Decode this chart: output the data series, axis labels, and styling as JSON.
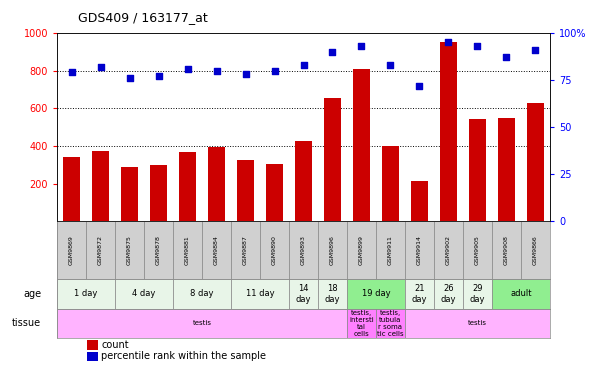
{
  "title": "GDS409 / 163177_at",
  "samples": [
    "GSM9869",
    "GSM9872",
    "GSM9875",
    "GSM9878",
    "GSM9881",
    "GSM9884",
    "GSM9887",
    "GSM9890",
    "GSM9893",
    "GSM9896",
    "GSM9899",
    "GSM9911",
    "GSM9914",
    "GSM9902",
    "GSM9905",
    "GSM9908",
    "GSM9866"
  ],
  "counts": [
    340,
    375,
    290,
    300,
    365,
    395,
    325,
    305,
    425,
    655,
    810,
    400,
    215,
    950,
    545,
    550,
    630
  ],
  "percentiles": [
    79,
    82,
    76,
    77,
    81,
    80,
    78,
    80,
    83,
    90,
    93,
    83,
    72,
    95,
    93,
    87,
    91
  ],
  "bar_color": "#cc0000",
  "dot_color": "#0000cc",
  "ylim_left": [
    0,
    1000
  ],
  "ylim_right": [
    0,
    100
  ],
  "yticks_left": [
    200,
    400,
    600,
    800,
    1000
  ],
  "yticks_right": [
    0,
    25,
    50,
    75,
    100
  ],
  "yticklabels_right": [
    "0",
    "25",
    "50",
    "75",
    "100%"
  ],
  "dotted_line_values": [
    400,
    600,
    800
  ],
  "age_groups": [
    {
      "label": "1 day",
      "start": 0,
      "end": 2,
      "color": "#e8f5e8"
    },
    {
      "label": "4 day",
      "start": 2,
      "end": 4,
      "color": "#e8f5e8"
    },
    {
      "label": "8 day",
      "start": 4,
      "end": 6,
      "color": "#e8f5e8"
    },
    {
      "label": "11 day",
      "start": 6,
      "end": 8,
      "color": "#e8f5e8"
    },
    {
      "label": "14\nday",
      "start": 8,
      "end": 9,
      "color": "#e8f5e8"
    },
    {
      "label": "18\nday",
      "start": 9,
      "end": 10,
      "color": "#e8f5e8"
    },
    {
      "label": "19 day",
      "start": 10,
      "end": 12,
      "color": "#90ee90"
    },
    {
      "label": "21\nday",
      "start": 12,
      "end": 13,
      "color": "#e8f5e8"
    },
    {
      "label": "26\nday",
      "start": 13,
      "end": 14,
      "color": "#e8f5e8"
    },
    {
      "label": "29\nday",
      "start": 14,
      "end": 15,
      "color": "#e8f5e8"
    },
    {
      "label": "adult",
      "start": 15,
      "end": 17,
      "color": "#90ee90"
    }
  ],
  "tissue_groups": [
    {
      "label": "testis",
      "start": 0,
      "end": 10,
      "color": "#ffb3ff"
    },
    {
      "label": "testis,\nintersti\ntal\ncells",
      "start": 10,
      "end": 11,
      "color": "#ff80ff"
    },
    {
      "label": "testis,\ntubula\nr soma\ntic cells",
      "start": 11,
      "end": 12,
      "color": "#ff80ff"
    },
    {
      "label": "testis",
      "start": 12,
      "end": 17,
      "color": "#ffb3ff"
    }
  ],
  "sample_box_color": "#d0d0d0",
  "sample_box_border": "#888888"
}
